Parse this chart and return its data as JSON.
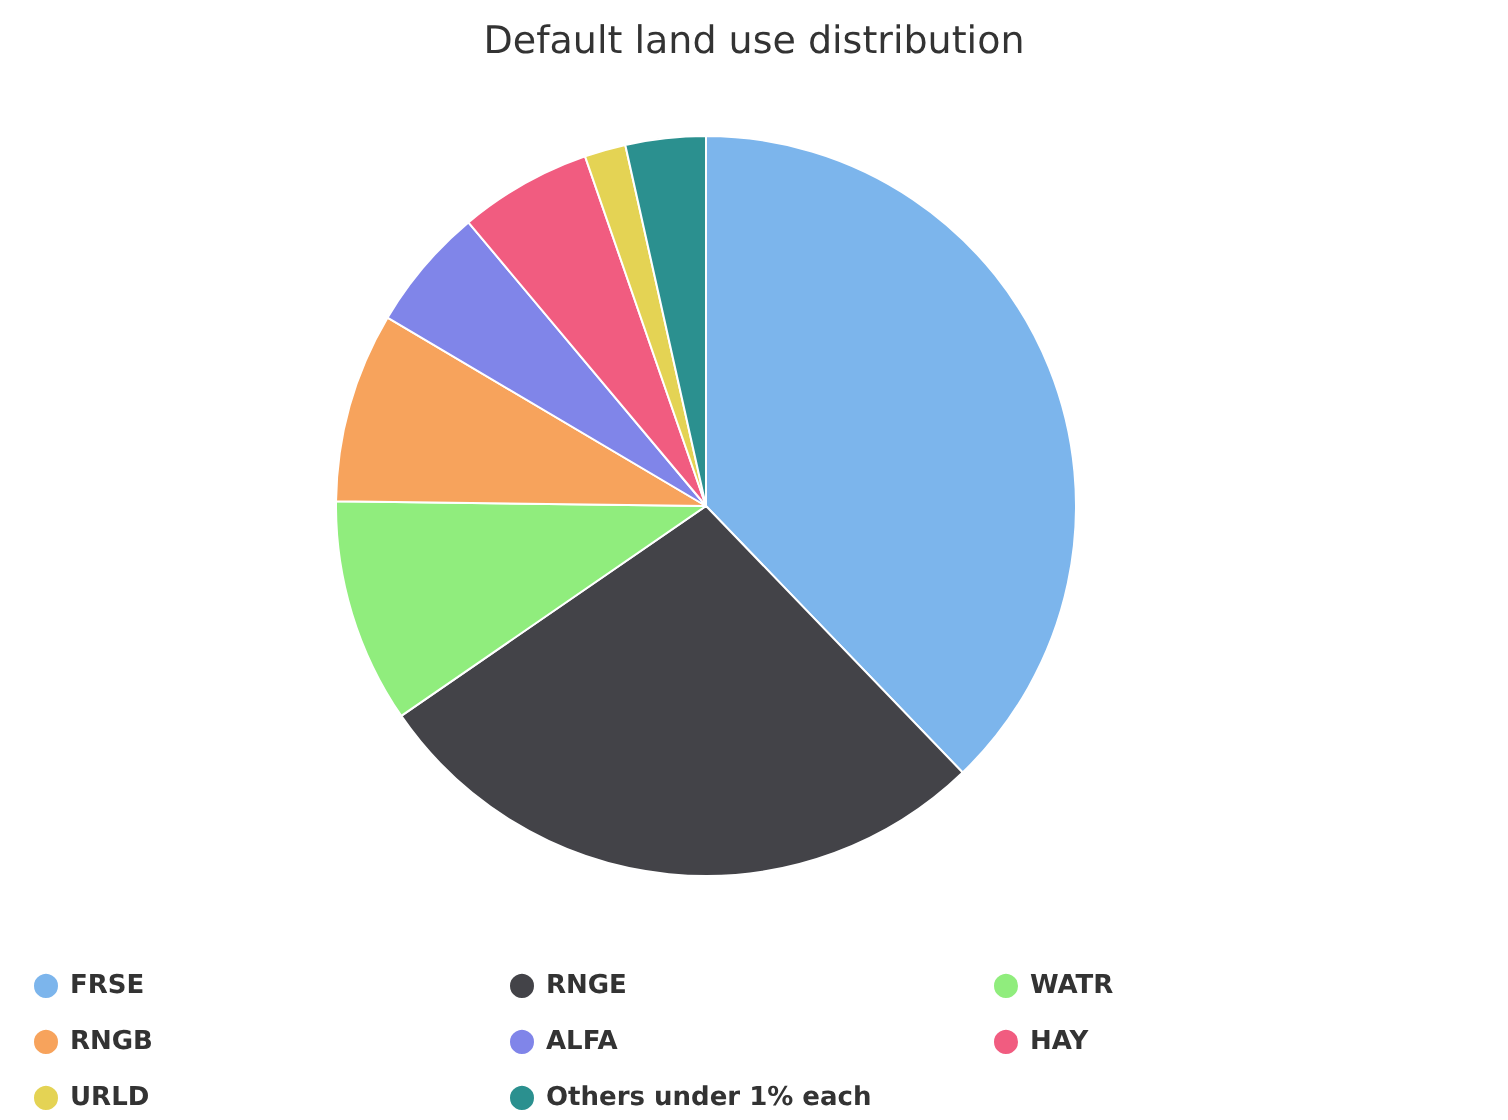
{
  "chart_data": {
    "type": "pie",
    "title": "Default land use distribution",
    "categories": [
      "FRSE",
      "RNGE",
      "WATR",
      "RNGB",
      "ALFA",
      "HAY",
      "URLD",
      "Others under 1% each"
    ],
    "values": [
      37.8,
      27.6,
      9.8,
      8.3,
      5.4,
      5.8,
      1.8,
      3.5
    ],
    "colors": [
      "#7cb5ec",
      "#434348",
      "#90ed7d",
      "#f7a35c",
      "#8085e9",
      "#f15c80",
      "#e4d354",
      "#2b908f"
    ],
    "legend": "bottom"
  }
}
